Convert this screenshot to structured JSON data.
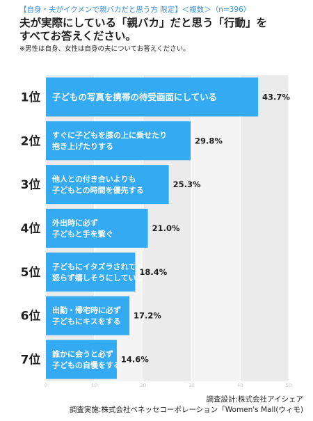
{
  "header": {
    "condition": "【自身・夫がイクメンで親バカだと思う方 限定】＜複数＞（n=396）",
    "title_line1": "夫が実際にしている「親バカ」だと思う「行動」を",
    "title_line2": "すべてお答えください。",
    "note": "※男性は自身、女性は自身の夫についてお答えください。"
  },
  "chart_data": {
    "type": "bar",
    "orientation": "horizontal",
    "xlim": [
      0,
      50
    ],
    "x_ticks": [
      "0",
      "10",
      "20",
      "30",
      "40",
      "50"
    ],
    "grid": true,
    "bar_color": "#33aaf2",
    "ranks": [
      "1位",
      "2位",
      "3位",
      "4位",
      "5位",
      "6位",
      "7位"
    ],
    "categories": [
      [
        "子どもの写真を携帯の待受画面にしている"
      ],
      [
        "すぐに子どもを膝の上に乗せたり",
        "抱き上げたりする"
      ],
      [
        "他人との付き合いよりも",
        "子どもとの時間を優先する"
      ],
      [
        "外出時に必ず",
        "子どもと手を繋ぐ"
      ],
      [
        "子どもにイタズラされても",
        "怒らず嬉しそうにしている"
      ],
      [
        "出勤・帰宅時に必ず",
        "子どもにキスをする"
      ],
      [
        "誰かに会うと必ず",
        "子どもの自慢をする"
      ]
    ],
    "values": [
      43.7,
      29.8,
      25.3,
      21.0,
      18.4,
      17.2,
      14.6
    ],
    "value_labels": [
      "43.7%",
      "29.8%",
      "25.3%",
      "21.0%",
      "18.4%",
      "17.2%",
      "14.6%"
    ]
  },
  "footer": {
    "line1": "調査設計:株式会社アイシェア",
    "line2": "調査実施:株式会社ベネッセコーポレーション「Women's Mall(ウィモ)"
  }
}
